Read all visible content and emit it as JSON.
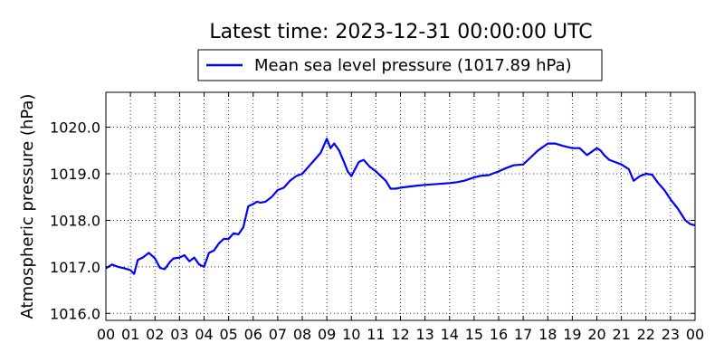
{
  "chart_data": {
    "type": "line",
    "title": "Latest time: 2023-12-31 00:00:00 UTC",
    "ylabel": "Atmospheric pressure (hPa)",
    "xlabel": "",
    "xlim": [
      0,
      24
    ],
    "ylim": [
      1015.85,
      1020.75
    ],
    "grid": true,
    "legend_position": "top-center",
    "x_ticks": [
      0,
      1,
      2,
      3,
      4,
      5,
      6,
      7,
      8,
      9,
      10,
      11,
      12,
      13,
      14,
      15,
      16,
      17,
      18,
      19,
      20,
      21,
      22,
      23,
      24
    ],
    "x_tick_labels": [
      "00",
      "01",
      "02",
      "03",
      "04",
      "05",
      "06",
      "07",
      "08",
      "09",
      "10",
      "11",
      "12",
      "13",
      "14",
      "15",
      "16",
      "17",
      "18",
      "19",
      "20",
      "21",
      "22",
      "23",
      "00"
    ],
    "y_ticks": [
      1016.0,
      1017.0,
      1018.0,
      1019.0,
      1020.0
    ],
    "y_tick_labels": [
      "1016.0",
      "1017.0",
      "1018.0",
      "1019.0",
      "1020.0"
    ],
    "series": [
      {
        "name": "Mean sea level pressure (1017.89 hPa)",
        "color": "#0000ff",
        "x": [
          0,
          0.25,
          0.5,
          0.75,
          1.0,
          1.15,
          1.3,
          1.5,
          1.75,
          2.0,
          2.2,
          2.4,
          2.6,
          2.75,
          3.0,
          3.2,
          3.4,
          3.6,
          3.8,
          4.0,
          4.2,
          4.4,
          4.6,
          4.8,
          5.0,
          5.2,
          5.4,
          5.6,
          5.8,
          6.0,
          6.15,
          6.3,
          6.5,
          6.75,
          7.0,
          7.25,
          7.5,
          7.75,
          8.0,
          8.25,
          8.5,
          8.75,
          9.0,
          9.15,
          9.3,
          9.5,
          9.7,
          9.85,
          10.0,
          10.3,
          10.5,
          10.75,
          11.0,
          11.2,
          11.4,
          11.6,
          11.8,
          12.0,
          12.3,
          12.6,
          13.0,
          13.5,
          14.0,
          14.3,
          14.6,
          15.0,
          15.3,
          15.6,
          16.0,
          16.3,
          16.6,
          17.0,
          17.3,
          17.6,
          18.0,
          18.3,
          18.6,
          19.0,
          19.3,
          19.6,
          20.0,
          20.15,
          20.3,
          20.5,
          20.75,
          21.0,
          21.3,
          21.5,
          21.75,
          22.0,
          22.25,
          22.5,
          22.75,
          23.0,
          23.3,
          23.6,
          23.8,
          24.0
        ],
        "y": [
          1016.97,
          1017.05,
          1017.0,
          1016.97,
          1016.93,
          1016.85,
          1017.15,
          1017.2,
          1017.3,
          1017.18,
          1016.98,
          1016.95,
          1017.1,
          1017.18,
          1017.2,
          1017.25,
          1017.12,
          1017.2,
          1017.05,
          1017.0,
          1017.3,
          1017.35,
          1017.5,
          1017.6,
          1017.6,
          1017.72,
          1017.7,
          1017.85,
          1018.3,
          1018.35,
          1018.4,
          1018.38,
          1018.4,
          1018.5,
          1018.65,
          1018.7,
          1018.85,
          1018.95,
          1019.0,
          1019.15,
          1019.3,
          1019.45,
          1019.75,
          1019.55,
          1019.65,
          1019.5,
          1019.25,
          1019.05,
          1018.95,
          1019.25,
          1019.3,
          1019.15,
          1019.05,
          1018.95,
          1018.85,
          1018.68,
          1018.68,
          1018.7,
          1018.72,
          1018.74,
          1018.76,
          1018.78,
          1018.8,
          1018.82,
          1018.85,
          1018.92,
          1018.96,
          1018.97,
          1019.05,
          1019.12,
          1019.18,
          1019.2,
          1019.35,
          1019.5,
          1019.65,
          1019.65,
          1019.6,
          1019.55,
          1019.55,
          1019.4,
          1019.55,
          1019.5,
          1019.4,
          1019.3,
          1019.25,
          1019.2,
          1019.1,
          1018.85,
          1018.95,
          1019.0,
          1018.98,
          1018.8,
          1018.65,
          1018.45,
          1018.25,
          1018.0,
          1017.92,
          1017.89
        ]
      }
    ]
  }
}
